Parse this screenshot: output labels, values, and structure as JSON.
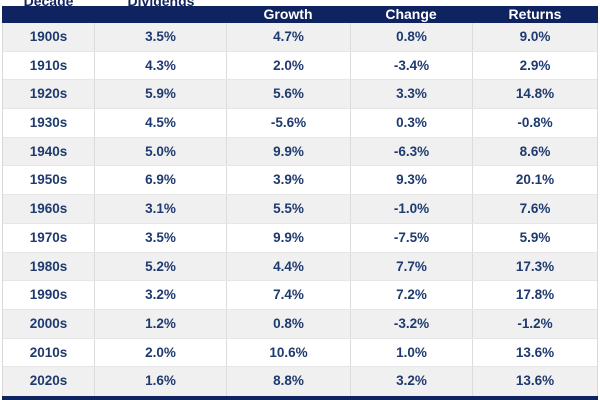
{
  "chart_data": {
    "type": "table",
    "columns": [
      "Decade",
      "Dividends",
      "Growth",
      "Change",
      "Returns"
    ],
    "rows": [
      [
        "1900s",
        "3.5%",
        "4.7%",
        "0.8%",
        "9.0%"
      ],
      [
        "1910s",
        "4.3%",
        "2.0%",
        "-3.4%",
        "2.9%"
      ],
      [
        "1920s",
        "5.9%",
        "5.6%",
        "3.3%",
        "14.8%"
      ],
      [
        "1930s",
        "4.5%",
        "-5.6%",
        "0.3%",
        "-0.8%"
      ],
      [
        "1940s",
        "5.0%",
        "9.9%",
        "-6.3%",
        "8.6%"
      ],
      [
        "1950s",
        "6.9%",
        "3.9%",
        "9.3%",
        "20.1%"
      ],
      [
        "1960s",
        "3.1%",
        "5.5%",
        "-1.0%",
        "7.6%"
      ],
      [
        "1970s",
        "3.5%",
        "9.9%",
        "-7.5%",
        "5.9%"
      ],
      [
        "1980s",
        "5.2%",
        "4.4%",
        "7.7%",
        "17.3%"
      ],
      [
        "1990s",
        "3.2%",
        "7.4%",
        "7.2%",
        "17.8%"
      ],
      [
        "2000s",
        "1.2%",
        "0.8%",
        "-3.2%",
        "-1.2%"
      ],
      [
        "2010s",
        "2.0%",
        "10.6%",
        "1.0%",
        "13.6%"
      ],
      [
        "2020s",
        "1.6%",
        "8.8%",
        "3.2%",
        "13.6%"
      ]
    ],
    "layout": {
      "note": "top header row cropped mid-text; only bottoms of first two column labels visible",
      "alternating_row_shading": true
    }
  },
  "header": {
    "partial_labels": {
      "decade": "Decade",
      "dividends": "Dividends"
    },
    "band_labels": {
      "growth": "Growth",
      "change": "Change",
      "returns": "Returns"
    }
  },
  "colors": {
    "header_band": "#0e2360",
    "cell_text": "#1e3a6e",
    "alt_row_bg": "#f0f0f1",
    "divider": "#d9d9d9",
    "bottom_bar": "#0e2360"
  }
}
